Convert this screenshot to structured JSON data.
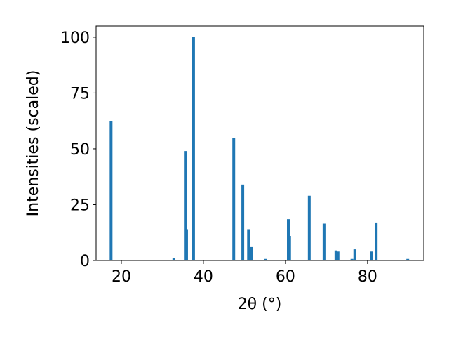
{
  "chart_data": {
    "type": "bar",
    "x_label": "2θ (°)",
    "y_label": "Intensities (scaled)",
    "x": [
      17.5,
      24.6,
      32.8,
      35.6,
      35.9,
      37.6,
      47.4,
      49.6,
      51.0,
      51.7,
      55.2,
      60.7,
      61.0,
      65.8,
      69.4,
      70.4,
      72.3,
      72.8,
      76.2,
      76.9,
      80.9,
      82.1,
      86.0,
      89.8
    ],
    "values": [
      62.5,
      0.3,
      1,
      49,
      14,
      100,
      55,
      34,
      14,
      6,
      0.7,
      18.5,
      11,
      29,
      16.5,
      0.3,
      4.5,
      4,
      0.7,
      5,
      4,
      17,
      0.3,
      0.7
    ],
    "color": "#1f77b4",
    "xlim": [
      13.85,
      93.7
    ],
    "ylim": [
      0,
      105
    ],
    "xticks": [
      20,
      40,
      60,
      80
    ],
    "yticks": [
      0,
      25,
      50,
      75,
      100
    ],
    "grid": false
  }
}
